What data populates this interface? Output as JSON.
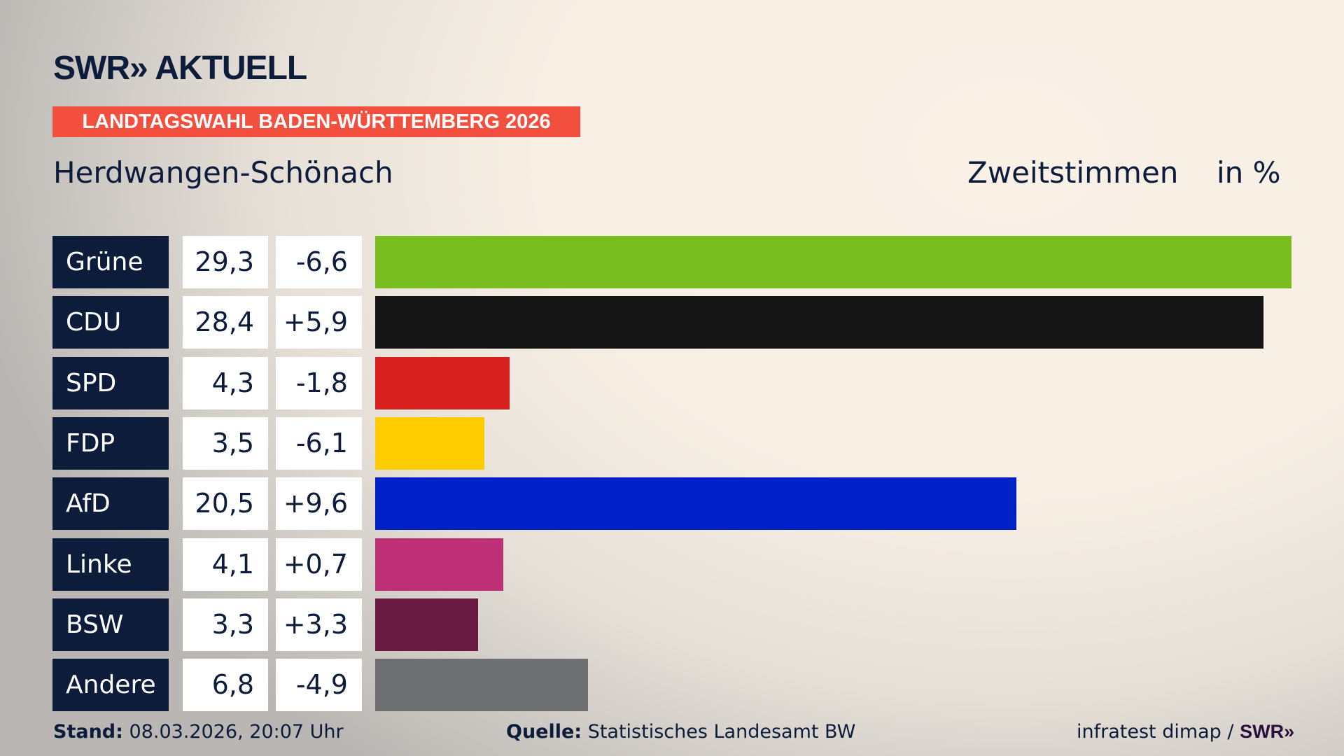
{
  "header": {
    "logo": "SWR» AKTUELL",
    "banner": "LANDTAGSWAHL BADEN-WÜRTTEMBERG 2026",
    "region": "Herdwangen-Schönach",
    "measure": "Zweitstimmen",
    "unit": "in %"
  },
  "chart_data": {
    "type": "bar",
    "orientation": "horizontal",
    "categories": [
      "Grüne",
      "CDU",
      "SPD",
      "FDP",
      "AfD",
      "Linke",
      "BSW",
      "Andere"
    ],
    "values": [
      29.3,
      28.4,
      4.3,
      3.5,
      20.5,
      4.1,
      3.3,
      6.8
    ],
    "values_label": [
      "29,3",
      "28,4",
      "4,3",
      "3,5",
      "20,5",
      "4,1",
      "3,3",
      "6,8"
    ],
    "change_label": [
      "-6,6",
      "+5,9",
      "-1,8",
      "-6,1",
      "+9,6",
      "+0,7",
      "+3,3",
      "-4,9"
    ],
    "change": [
      -6.6,
      5.9,
      -1.8,
      -6.1,
      9.6,
      0.7,
      3.3,
      -4.9
    ],
    "colors": [
      "#7abd1e",
      "#151515",
      "#d8201e",
      "#ffcc00",
      "#0021c8",
      "#bd3075",
      "#681a40",
      "#6f7072"
    ],
    "xlim": [
      0,
      29.3
    ]
  },
  "footer": {
    "stand_label": "Stand:",
    "stand": "08.03.2026, 20:07 Uhr",
    "source_label": "Quelle:",
    "source": "Statistisches Landesamt BW",
    "credit": "infratest dimap /",
    "credit_logo": "SWR»"
  }
}
